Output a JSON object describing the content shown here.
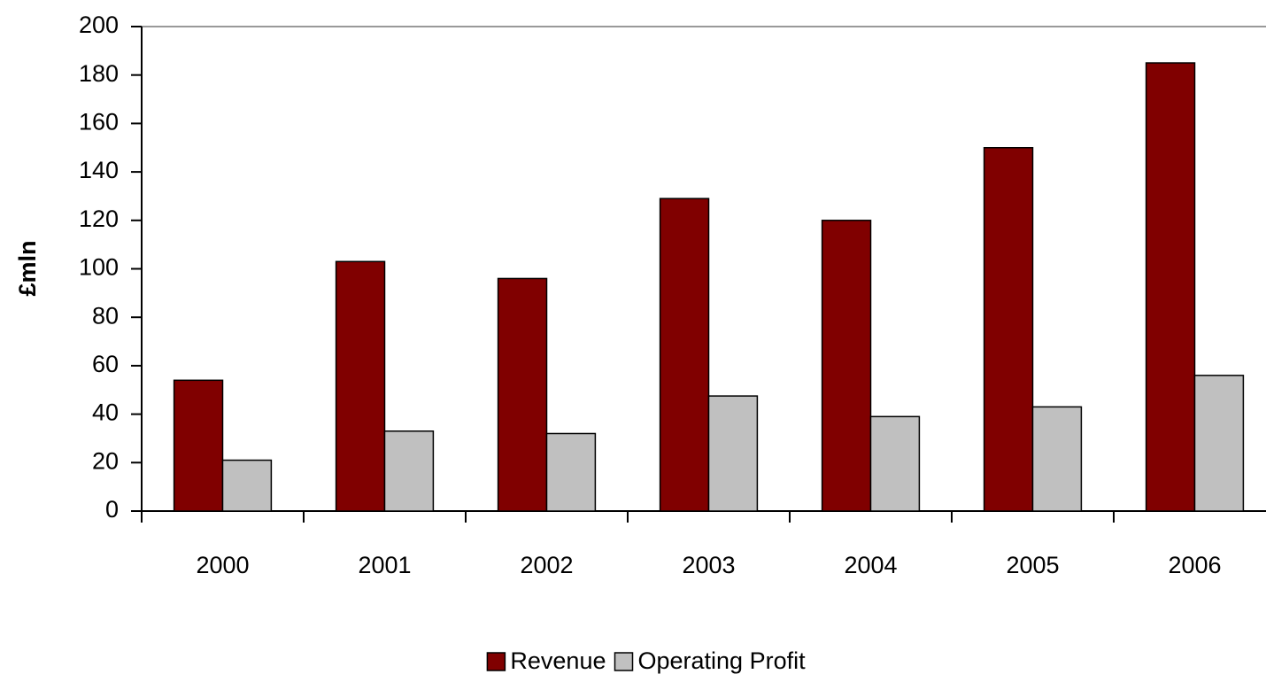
{
  "chart_data": {
    "type": "bar",
    "y_label": "£mln",
    "categories": [
      "2000",
      "2001",
      "2002",
      "2003",
      "2004",
      "2005",
      "2006"
    ],
    "series": [
      {
        "name": "Revenue",
        "color": "#800000",
        "values": [
          54,
          103,
          96,
          129,
          120,
          150,
          185
        ]
      },
      {
        "name": "Operating Profit",
        "color": "#c0c0c0",
        "values": [
          21,
          33,
          32,
          47.5,
          39,
          43,
          56
        ]
      }
    ],
    "ylim": [
      0,
      200
    ],
    "yticks": [
      0,
      20,
      40,
      60,
      80,
      100,
      120,
      140,
      160,
      180,
      200
    ],
    "grid": false,
    "legend": "bottom"
  }
}
